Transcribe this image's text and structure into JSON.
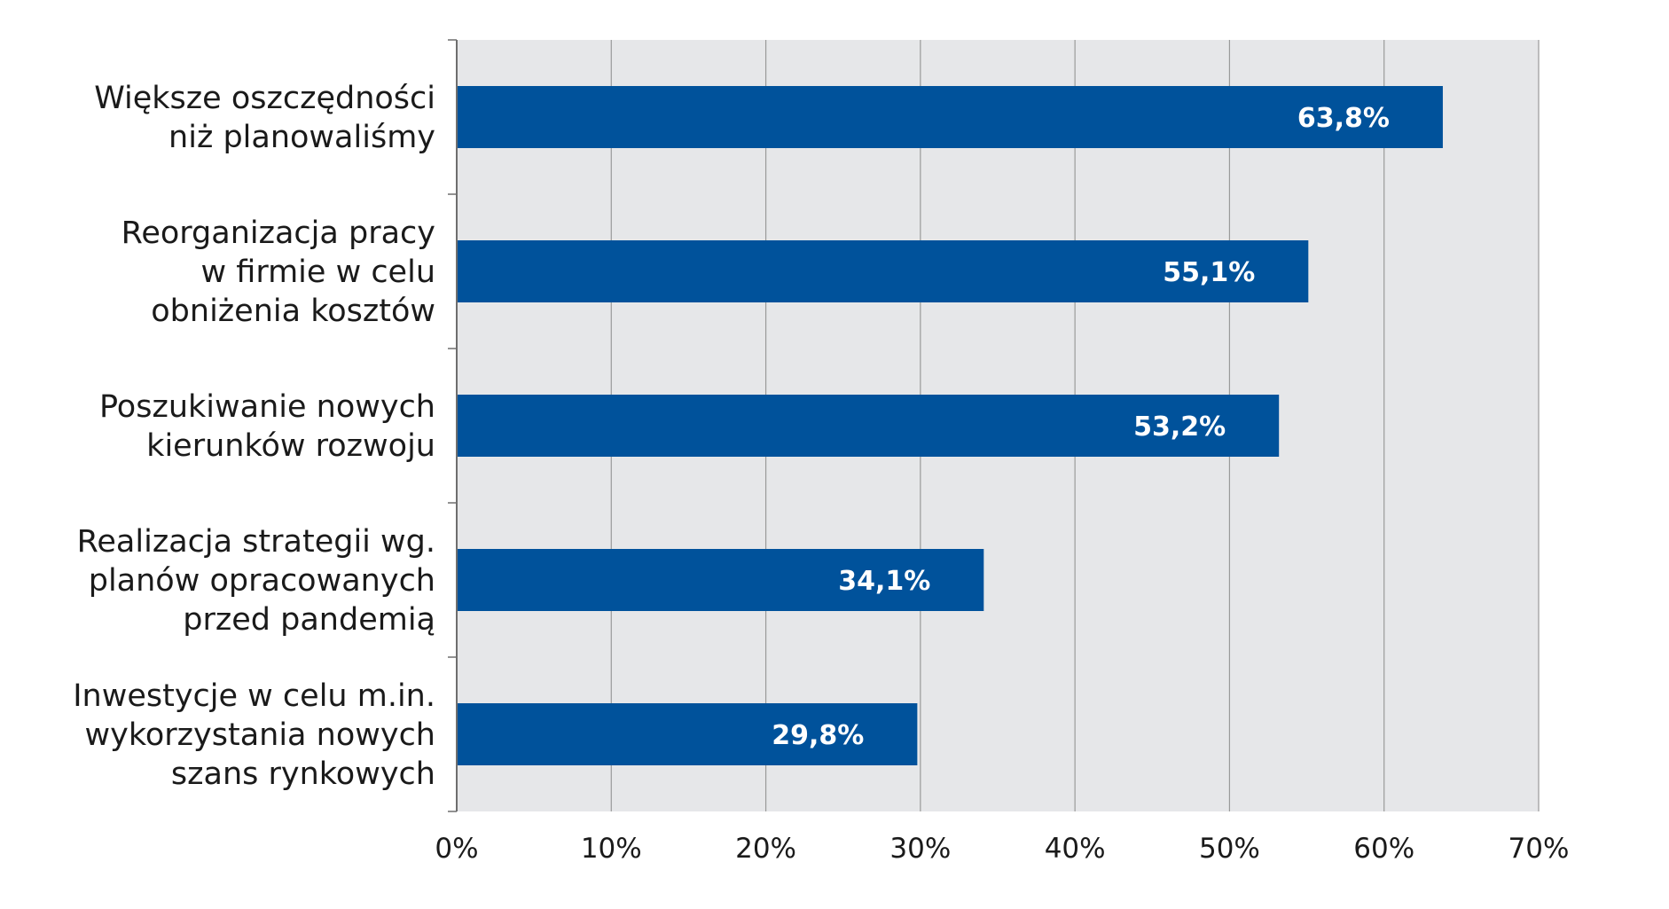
{
  "colors": {
    "bar": "#00529b",
    "plot_background": "#e6e7e9",
    "grid": "#9a9a9a",
    "axis": "#6e6e6e",
    "value_label": "#ffffff",
    "text": "#1a1a1a"
  },
  "chart_data": {
    "type": "bar",
    "orientation": "horizontal",
    "title": "",
    "xlabel": "",
    "ylabel": "",
    "xlim": [
      0,
      70
    ],
    "grid": true,
    "legend": "none",
    "categories": [
      [
        "Większe oszczędności",
        "niż planowaliśmy"
      ],
      [
        "Reorganizacja pracy",
        "w firmie w celu",
        "obniżenia kosztów"
      ],
      [
        "Poszukiwanie nowych",
        "kierunków rozwoju"
      ],
      [
        "Realizacja strategii wg.",
        "planów opracowanych",
        "przed pandemią"
      ],
      [
        "Inwestycje w celu m.in.",
        "wykorzystania nowych",
        "szans rynkowych"
      ]
    ],
    "values": [
      63.8,
      55.1,
      53.2,
      34.1,
      29.8
    ],
    "value_labels": [
      "63,8%",
      "55,1%",
      "53,2%",
      "34,1%",
      "29,8%"
    ],
    "x_ticks": [
      0,
      10,
      20,
      30,
      40,
      50,
      60,
      70
    ],
    "x_tick_labels": [
      "0%",
      "10%",
      "20%",
      "30%",
      "40%",
      "50%",
      "60%",
      "70%"
    ]
  }
}
